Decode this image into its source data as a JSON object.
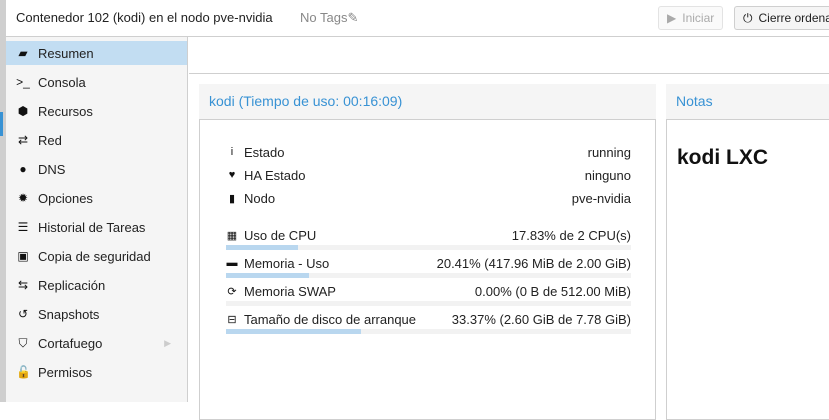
{
  "header": {
    "title": "Contenedor 102 (kodi) en el nodo pve-nvidia",
    "tags": "No Tags",
    "start_label": "Iniciar",
    "shutdown_label": "Cierre ordena"
  },
  "sidebar": {
    "items": [
      {
        "label": "Resumen",
        "icon": "book-icon",
        "glyph": "▰",
        "selected": true
      },
      {
        "label": "Consola",
        "icon": "terminal-icon",
        "glyph": ">_"
      },
      {
        "label": "Recursos",
        "icon": "cube-icon",
        "glyph": "⬢"
      },
      {
        "label": "Red",
        "icon": "exchange-icon",
        "glyph": "⇄"
      },
      {
        "label": "DNS",
        "icon": "globe-icon",
        "glyph": "●"
      },
      {
        "label": "Opciones",
        "icon": "gear-icon",
        "glyph": "✹"
      },
      {
        "label": "Historial de Tareas",
        "icon": "list-icon",
        "glyph": "☰"
      },
      {
        "label": "Copia de seguridad",
        "icon": "floppy-icon",
        "glyph": "▣"
      },
      {
        "label": "Replicación",
        "icon": "retweet-icon",
        "glyph": "⇆"
      },
      {
        "label": "Snapshots",
        "icon": "history-icon",
        "glyph": "↺"
      },
      {
        "label": "Cortafuego",
        "icon": "shield-icon",
        "glyph": "⛉",
        "submenu": true
      },
      {
        "label": "Permisos",
        "icon": "unlock-icon",
        "glyph": "🔓"
      }
    ]
  },
  "status": {
    "title": "kodi (Tiempo de uso: 00:16:09)",
    "info": [
      {
        "label": "Estado",
        "value": "running",
        "icon": "info-icon",
        "glyph": "i"
      },
      {
        "label": "HA Estado",
        "value": "ninguno",
        "icon": "heartbeat-icon",
        "glyph": "♥"
      },
      {
        "label": "Nodo",
        "value": "pve-nvidia",
        "icon": "server-icon",
        "glyph": "▮"
      }
    ],
    "usage": [
      {
        "label": "Uso de CPU",
        "value": "17.83% de 2 CPU(s)",
        "percent": 17.83,
        "icon": "cpu-icon",
        "glyph": "▦"
      },
      {
        "label": "Memoria - Uso",
        "value": "20.41% (417.96 MiB de 2.00 GiB)",
        "percent": 20.41,
        "icon": "memory-icon",
        "glyph": "▬"
      },
      {
        "label": "Memoria SWAP",
        "value": "0.00% (0 B de 512.00 MiB)",
        "percent": 0,
        "icon": "refresh-icon",
        "glyph": "⟳"
      },
      {
        "label": "Tamaño de disco de arranque",
        "value": "33.37% (2.60 GiB de 7.78 GiB)",
        "percent": 33.37,
        "icon": "hdd-icon",
        "glyph": "⊟"
      }
    ]
  },
  "notes": {
    "title": "Notas",
    "content": "kodi LXC"
  },
  "colors": {
    "accent": "#3892d4",
    "selected": "#c2ddf2",
    "bar_fill": "#b9d7ef"
  }
}
